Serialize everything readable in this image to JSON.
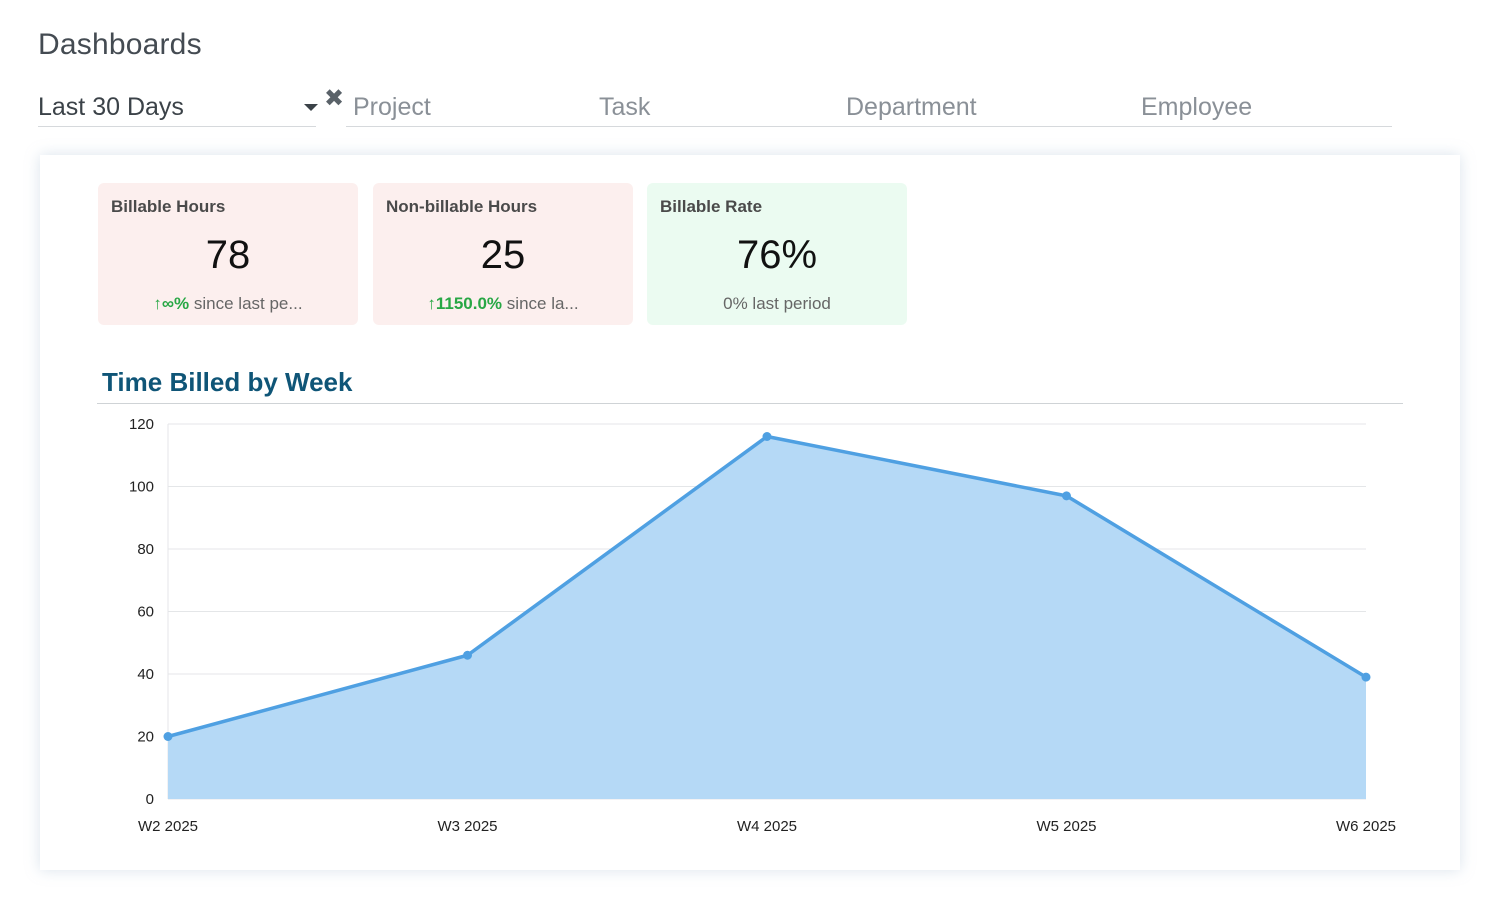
{
  "page": {
    "title": "Dashboards"
  },
  "filters": {
    "period": "Last 30 Days",
    "clear_icon": "close-icon",
    "fields": [
      "Project",
      "Task",
      "Department",
      "Employee"
    ]
  },
  "kpis": [
    {
      "label": "Billable Hours",
      "value": "78",
      "trend": "↑∞%",
      "trend_text": " since last pe...",
      "color": "#fcefee"
    },
    {
      "label": "Non-billable Hours",
      "value": "25",
      "trend": "↑1150.0%",
      "trend_text": " since la...",
      "color": "#fcefee"
    },
    {
      "label": "Billable Rate",
      "value": "76%",
      "trend": "",
      "trend_text": "0% last period",
      "color": "#ebfbf1"
    }
  ],
  "colors": {
    "accent": "#4fa0e2",
    "fill": "#b5d9f6",
    "trend_up": "#28a745",
    "title": "#0f5577"
  },
  "chart_data": {
    "type": "area",
    "title": "Time Billed by Week",
    "categories": [
      "W2 2025",
      "W3 2025",
      "W4 2025",
      "W5 2025",
      "W6 2025"
    ],
    "values": [
      20,
      46,
      116,
      97,
      39
    ],
    "ylim": [
      0,
      120
    ],
    "yticks": [
      0,
      20,
      40,
      60,
      80,
      100,
      120
    ],
    "grid": true,
    "xlabel": "",
    "ylabel": ""
  }
}
